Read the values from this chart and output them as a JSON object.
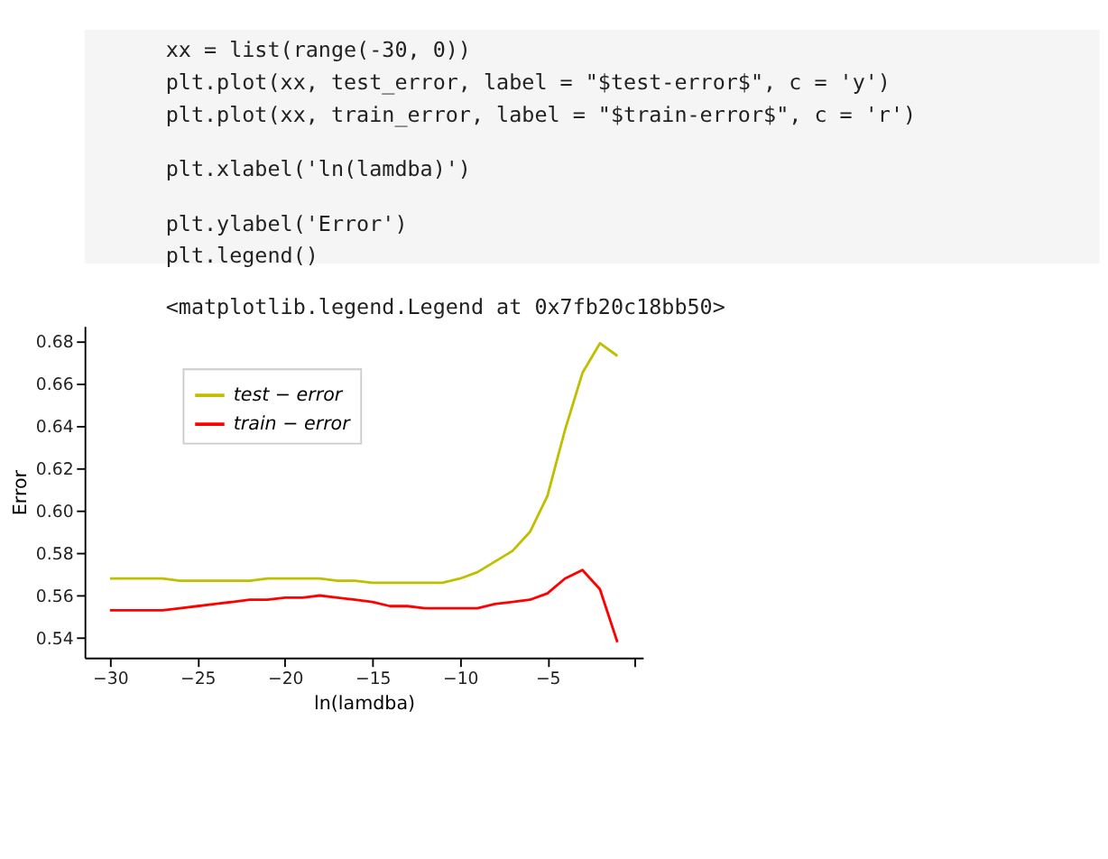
{
  "chart_data": {
    "type": "line",
    "xlabel": "ln(lamdba)",
    "ylabel": "Error",
    "annotations": [
      "xx = list(range(-30, 0))",
      "plt.plot(xx, test_error, label = \"$test-error$\", c = 'y')",
      "plt.plot(xx, train_error, label = \"$train-error$\", c = 'r')",
      "plt.xlabel('ln(lamdba)')",
      "plt.ylabel('Error')",
      "plt.legend()",
      "<matplotlib.legend.Legend at 0x7fb20c18bb50>"
    ],
    "x": [
      -30,
      -29,
      -28,
      -27,
      -26,
      -25,
      -24,
      -23,
      -22,
      -21,
      -20,
      -19,
      -18,
      -17,
      -16,
      -15,
      -14,
      -13,
      -12,
      -11,
      -10,
      -9,
      -8,
      -7,
      -6,
      -5,
      -4,
      -3,
      -2,
      -1
    ],
    "series": [
      {
        "name": "test − error",
        "color": "#bfbf00",
        "values": [
          0.568,
          0.568,
          0.568,
          0.568,
          0.567,
          0.567,
          0.567,
          0.567,
          0.567,
          0.568,
          0.568,
          0.568,
          0.568,
          0.567,
          0.567,
          0.566,
          0.566,
          0.566,
          0.566,
          0.566,
          0.568,
          0.571,
          0.576,
          0.581,
          0.59,
          0.607,
          0.638,
          0.665,
          0.679,
          0.673
        ]
      },
      {
        "name": "train − error",
        "color": "#ff0000",
        "values": [
          0.553,
          0.553,
          0.553,
          0.553,
          0.554,
          0.555,
          0.556,
          0.557,
          0.558,
          0.558,
          0.559,
          0.559,
          0.56,
          0.559,
          0.558,
          0.557,
          0.555,
          0.555,
          0.554,
          0.554,
          0.554,
          0.554,
          0.556,
          0.557,
          0.558,
          0.561,
          0.568,
          0.572,
          0.563,
          0.538
        ]
      }
    ],
    "xlim": [
      -31.45,
      0.45
    ],
    "ylim": [
      0.5307,
      0.6871
    ],
    "xticks": [
      {
        "value": -30,
        "label": "−30"
      },
      {
        "value": -25,
        "label": "−25"
      },
      {
        "value": -20,
        "label": "−20"
      },
      {
        "value": -15,
        "label": "−15"
      },
      {
        "value": -10,
        "label": "−10"
      },
      {
        "value": -5,
        "label": "−5"
      },
      {
        "value": 0,
        "label": null
      }
    ],
    "yticks": [
      {
        "value": 0.54,
        "label": "0.54"
      },
      {
        "value": 0.56,
        "label": "0.56"
      },
      {
        "value": 0.58,
        "label": "0.58"
      },
      {
        "value": 0.6,
        "label": "0.60"
      },
      {
        "value": 0.62,
        "label": "0.62"
      },
      {
        "value": 0.64,
        "label": "0.64"
      },
      {
        "value": 0.66,
        "label": "0.66"
      },
      {
        "value": 0.68,
        "label": "0.68"
      }
    ],
    "legend": "top left",
    "grid": false,
    "line_style": "solid",
    "marker": "none"
  }
}
